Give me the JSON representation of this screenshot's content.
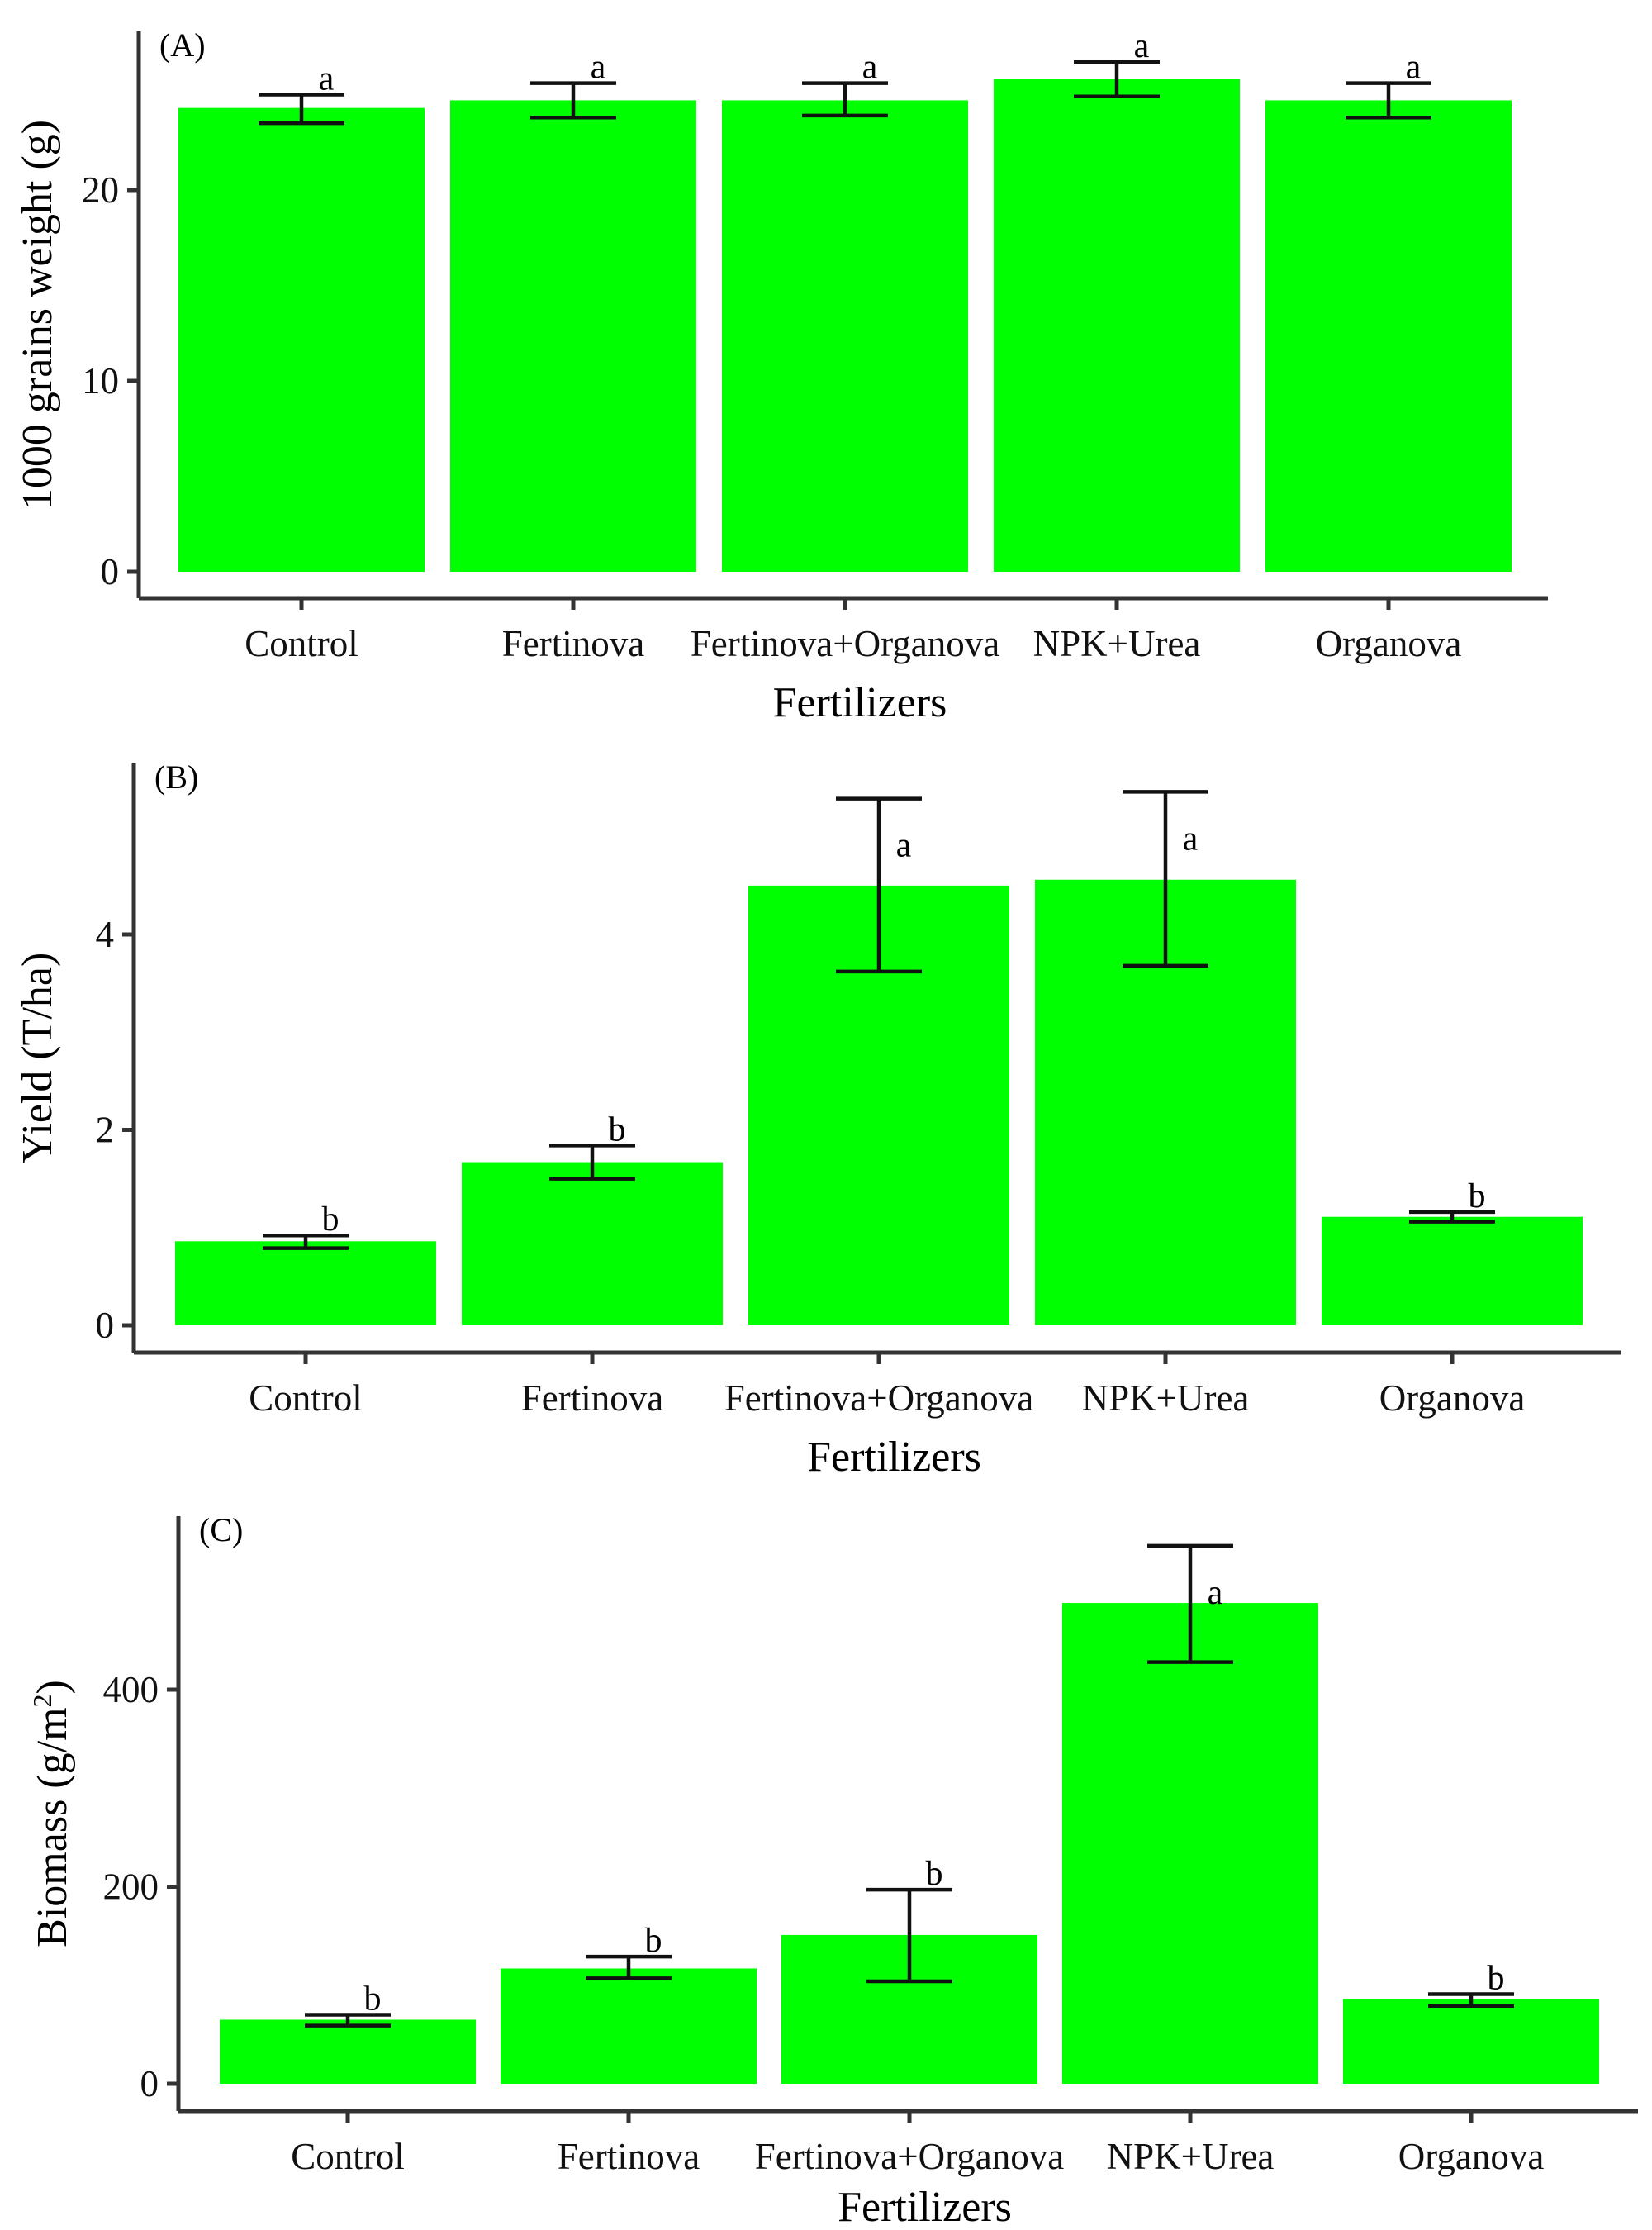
{
  "figure": {
    "bar_color": "#00ff00",
    "axis_color": "#333333",
    "text_color": "#000000"
  },
  "chart_data": [
    {
      "type": "bar",
      "panel_label": "(A)",
      "title": "",
      "xlabel": "Fertilizers",
      "ylabel": "1000 grains weight (g)",
      "ylabel_superscript": "",
      "categories": [
        "Control",
        "Fertinova",
        "Fertinova+Organova",
        "NPK+Urea",
        "Organova"
      ],
      "values": [
        24.3,
        24.7,
        24.7,
        25.8,
        24.7
      ],
      "error_low": [
        23.5,
        23.8,
        23.9,
        24.9,
        23.8
      ],
      "error_high": [
        25.0,
        25.6,
        25.6,
        26.7,
        25.6
      ],
      "significance": [
        "a",
        "a",
        "a",
        "a",
        "a"
      ],
      "yticks": [
        0,
        10,
        20
      ],
      "ylim": [
        -2.5,
        28.5
      ],
      "grid": false,
      "legend": "none"
    },
    {
      "type": "bar",
      "panel_label": "(B)",
      "title": "",
      "xlabel": "Fertilizers",
      "ylabel": "Yield (T/ha)",
      "ylabel_superscript": "",
      "categories": [
        "Control",
        "Fertinova",
        "Fertinova+Organova",
        "NPK+Urea",
        "Organova"
      ],
      "values": [
        0.86,
        1.67,
        4.5,
        4.56,
        1.11
      ],
      "error_low": [
        0.79,
        1.5,
        3.62,
        3.68,
        1.06
      ],
      "error_high": [
        0.92,
        1.84,
        5.39,
        5.46,
        1.16
      ],
      "significance": [
        "b",
        "b",
        "a",
        "a",
        "b"
      ],
      "yticks": [
        0,
        2,
        4
      ],
      "ylim": [
        -0.28,
        5.75
      ],
      "grid": false,
      "legend": "none"
    },
    {
      "type": "bar",
      "panel_label": "(C)",
      "title": "",
      "xlabel": "Fertilizers",
      "ylabel": "Biomass (g/m",
      "ylabel_superscript": "2",
      "ylabel_suffix": ")",
      "categories": [
        "Control",
        "Fertinova",
        "Fertinova+Organova",
        "NPK+Urea",
        "Organova"
      ],
      "values": [
        65,
        117,
        151,
        488,
        86
      ],
      "error_low": [
        59,
        107,
        104,
        428,
        79
      ],
      "error_high": [
        70,
        129,
        197,
        546,
        91
      ],
      "significance": [
        "b",
        "b",
        "b",
        "a",
        "b"
      ],
      "yticks": [
        0,
        200,
        400
      ],
      "ylim": [
        -28,
        575
      ],
      "grid": false,
      "legend": "none"
    }
  ]
}
